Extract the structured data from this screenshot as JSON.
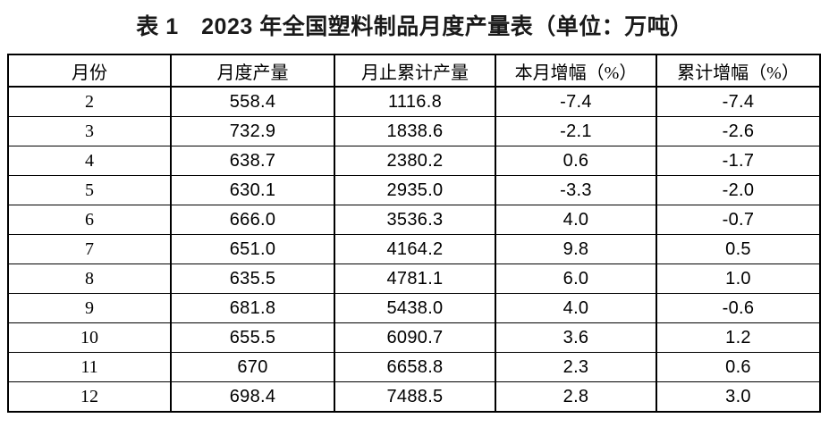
{
  "chart_data": {
    "type": "table",
    "title": "表 1　2023 年全国塑料制品月度产量表（单位：万吨）",
    "unit": "万吨",
    "columns": [
      "月份",
      "月度产量",
      "月止累计产量",
      "本月增幅（%）",
      "累计增幅（%）"
    ],
    "rows": [
      [
        "2",
        "558.4",
        "1116.8",
        "-7.4",
        "-7.4"
      ],
      [
        "3",
        "732.9",
        "1838.6",
        "-2.1",
        "-2.6"
      ],
      [
        "4",
        "638.7",
        "2380.2",
        "0.6",
        "-1.7"
      ],
      [
        "5",
        "630.1",
        "2935.0",
        "-3.3",
        "-2.0"
      ],
      [
        "6",
        "666.0",
        "3536.3",
        "4.0",
        "-0.7"
      ],
      [
        "7",
        "651.0",
        "4164.2",
        "9.8",
        "0.5"
      ],
      [
        "8",
        "635.5",
        "4781.1",
        "6.0",
        "1.0"
      ],
      [
        "9",
        "681.8",
        "5438.0",
        "4.0",
        "-0.6"
      ],
      [
        "10",
        "655.5",
        "6090.7",
        "3.6",
        "1.2"
      ],
      [
        "11",
        "670",
        "6658.8",
        "2.3",
        "0.6"
      ],
      [
        "12",
        "698.4",
        "7488.5",
        "2.8",
        "3.0"
      ]
    ]
  },
  "colors": {
    "text": "#000000",
    "border": "#000000",
    "background": "#ffffff"
  }
}
